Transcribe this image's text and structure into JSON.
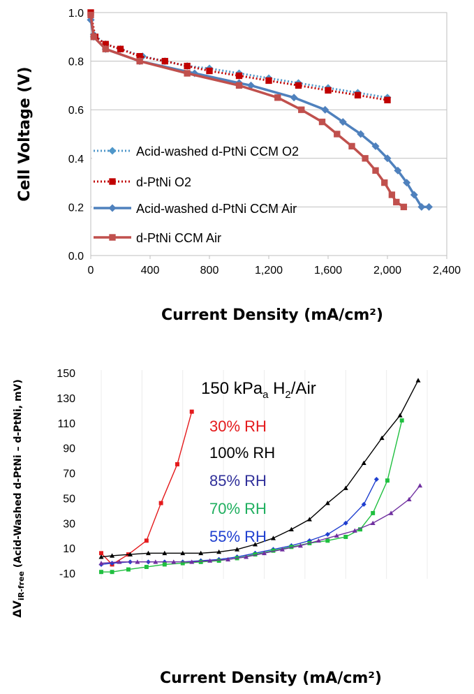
{
  "chart_data": [
    {
      "type": "line",
      "ylabel": "Cell Voltage (V)",
      "xlabel": "Current Density (mA/cm²)",
      "xlim": [
        0,
        2400
      ],
      "ylim": [
        0.0,
        1.0
      ],
      "xticks": [
        "0",
        "400",
        "800",
        "1,200",
        "1,600",
        "2,000",
        "2,400"
      ],
      "yticks": [
        "0.0",
        "0.2",
        "0.4",
        "0.6",
        "0.8",
        "1.0"
      ],
      "legend_position": "left",
      "series": [
        {
          "name": "Acid-washed d-PtNi CCM O2",
          "color": "#4f97c9",
          "style": "dotted",
          "marker": "diamond",
          "x": [
            0,
            20,
            100,
            200,
            350,
            500,
            650,
            800,
            1000,
            1200,
            1400,
            1600,
            1800,
            2000
          ],
          "y": [
            0.97,
            0.91,
            0.87,
            0.85,
            0.82,
            0.8,
            0.78,
            0.77,
            0.75,
            0.73,
            0.71,
            0.69,
            0.67,
            0.65
          ]
        },
        {
          "name": "d-PtNi O2",
          "color": "#c00000",
          "style": "dotted",
          "marker": "square",
          "x": [
            0,
            30,
            100,
            200,
            330,
            500,
            650,
            800,
            1000,
            1200,
            1400,
            1600,
            1800,
            2000
          ],
          "y": [
            1.0,
            0.9,
            0.87,
            0.85,
            0.82,
            0.8,
            0.78,
            0.76,
            0.74,
            0.72,
            0.7,
            0.68,
            0.66,
            0.64
          ]
        },
        {
          "name": "Acid-washed d-PtNi CCM Air",
          "color": "#4f81bd",
          "style": "solid",
          "marker": "diamond",
          "x": [
            0,
            20,
            100,
            330,
            700,
            1000,
            1080,
            1370,
            1580,
            1700,
            1820,
            1920,
            2000,
            2070,
            2130,
            2180,
            2230,
            2280
          ],
          "y": [
            0.97,
            0.9,
            0.85,
            0.8,
            0.75,
            0.71,
            0.7,
            0.65,
            0.6,
            0.55,
            0.5,
            0.45,
            0.4,
            0.35,
            0.3,
            0.25,
            0.2,
            0.2
          ]
        },
        {
          "name": "d-PtNi CCM Air",
          "color": "#c0504d",
          "style": "solid",
          "marker": "square",
          "x": [
            0,
            20,
            100,
            330,
            650,
            1000,
            1260,
            1420,
            1560,
            1660,
            1760,
            1850,
            1920,
            1980,
            2030,
            2060,
            2110
          ],
          "y": [
            0.99,
            0.9,
            0.85,
            0.8,
            0.75,
            0.7,
            0.65,
            0.6,
            0.55,
            0.5,
            0.45,
            0.4,
            0.35,
            0.3,
            0.25,
            0.22,
            0.2
          ]
        }
      ]
    },
    {
      "type": "line",
      "ylabel_prefix": "ΔV",
      "ylabel_sub": "iR-free",
      "ylabel_rest": " (Acid-Washed d-PtNi – d-PtNi, mV)",
      "xlabel": "Current Density (mA/cm²)",
      "ylim": [
        -10,
        150
      ],
      "yticks": [
        "-10",
        "10",
        "30",
        "50",
        "70",
        "90",
        "110",
        "130",
        "150"
      ],
      "xlim": [
        0,
        1800
      ],
      "condition_main": "150 kPa",
      "condition_sub_a": "a",
      "condition_h": " H",
      "condition_sub_2": "2",
      "condition_rest": "/Air",
      "series": [
        {
          "name": "30% RH",
          "color": "#e41a1c",
          "marker": "square",
          "x": [
            0,
            60,
            150,
            250,
            330,
            420,
            500
          ],
          "y": [
            6,
            -3,
            5,
            16,
            46,
            77,
            119
          ]
        },
        {
          "name": "100% RH",
          "color": "#000000",
          "marker": "triangle",
          "x": [
            0,
            60,
            160,
            260,
            350,
            450,
            550,
            650,
            750,
            850,
            950,
            1050,
            1150,
            1250,
            1350,
            1450,
            1550,
            1650,
            1750
          ],
          "y": [
            3,
            4,
            5,
            6,
            6,
            6,
            6,
            7,
            9,
            13,
            18,
            25,
            33,
            46,
            58,
            78,
            98,
            116,
            144
          ]
        },
        {
          "name": "85% RH",
          "color": "#1f3fcf",
          "marker": "diamond",
          "x": [
            0,
            60,
            160,
            260,
            350,
            450,
            550,
            650,
            750,
            850,
            950,
            1050,
            1150,
            1250,
            1350,
            1450,
            1520
          ],
          "y": [
            -3,
            -2,
            -1,
            -1,
            -1,
            -1,
            0,
            1,
            3,
            6,
            9,
            12,
            16,
            21,
            30,
            45,
            65
          ]
        },
        {
          "name": "70% RH",
          "color": "#1fbf3f",
          "marker": "square",
          "x": [
            0,
            60,
            150,
            250,
            350,
            450,
            550,
            650,
            750,
            850,
            950,
            1050,
            1150,
            1250,
            1350,
            1430,
            1500,
            1580,
            1660
          ],
          "y": [
            -9,
            -9,
            -7,
            -5,
            -3,
            -2,
            -1,
            0,
            2,
            5,
            8,
            11,
            14,
            16,
            19,
            25,
            38,
            64,
            112
          ]
        },
        {
          "name": "55% RH",
          "color": "#7030a0",
          "marker": "triangle",
          "x": [
            0,
            100,
            200,
            300,
            400,
            500,
            600,
            700,
            800,
            900,
            1000,
            1100,
            1200,
            1300,
            1400,
            1500,
            1600,
            1700,
            1760
          ],
          "y": [
            -2,
            -1,
            -1,
            -1,
            -1,
            -1,
            0,
            1,
            3,
            6,
            9,
            12,
            16,
            20,
            24,
            30,
            38,
            49,
            60
          ]
        }
      ],
      "rh_label_colors": [
        "#e41a1c",
        "#000000",
        "#30309a",
        "#1faf5f",
        "#1f3fcf"
      ]
    }
  ]
}
